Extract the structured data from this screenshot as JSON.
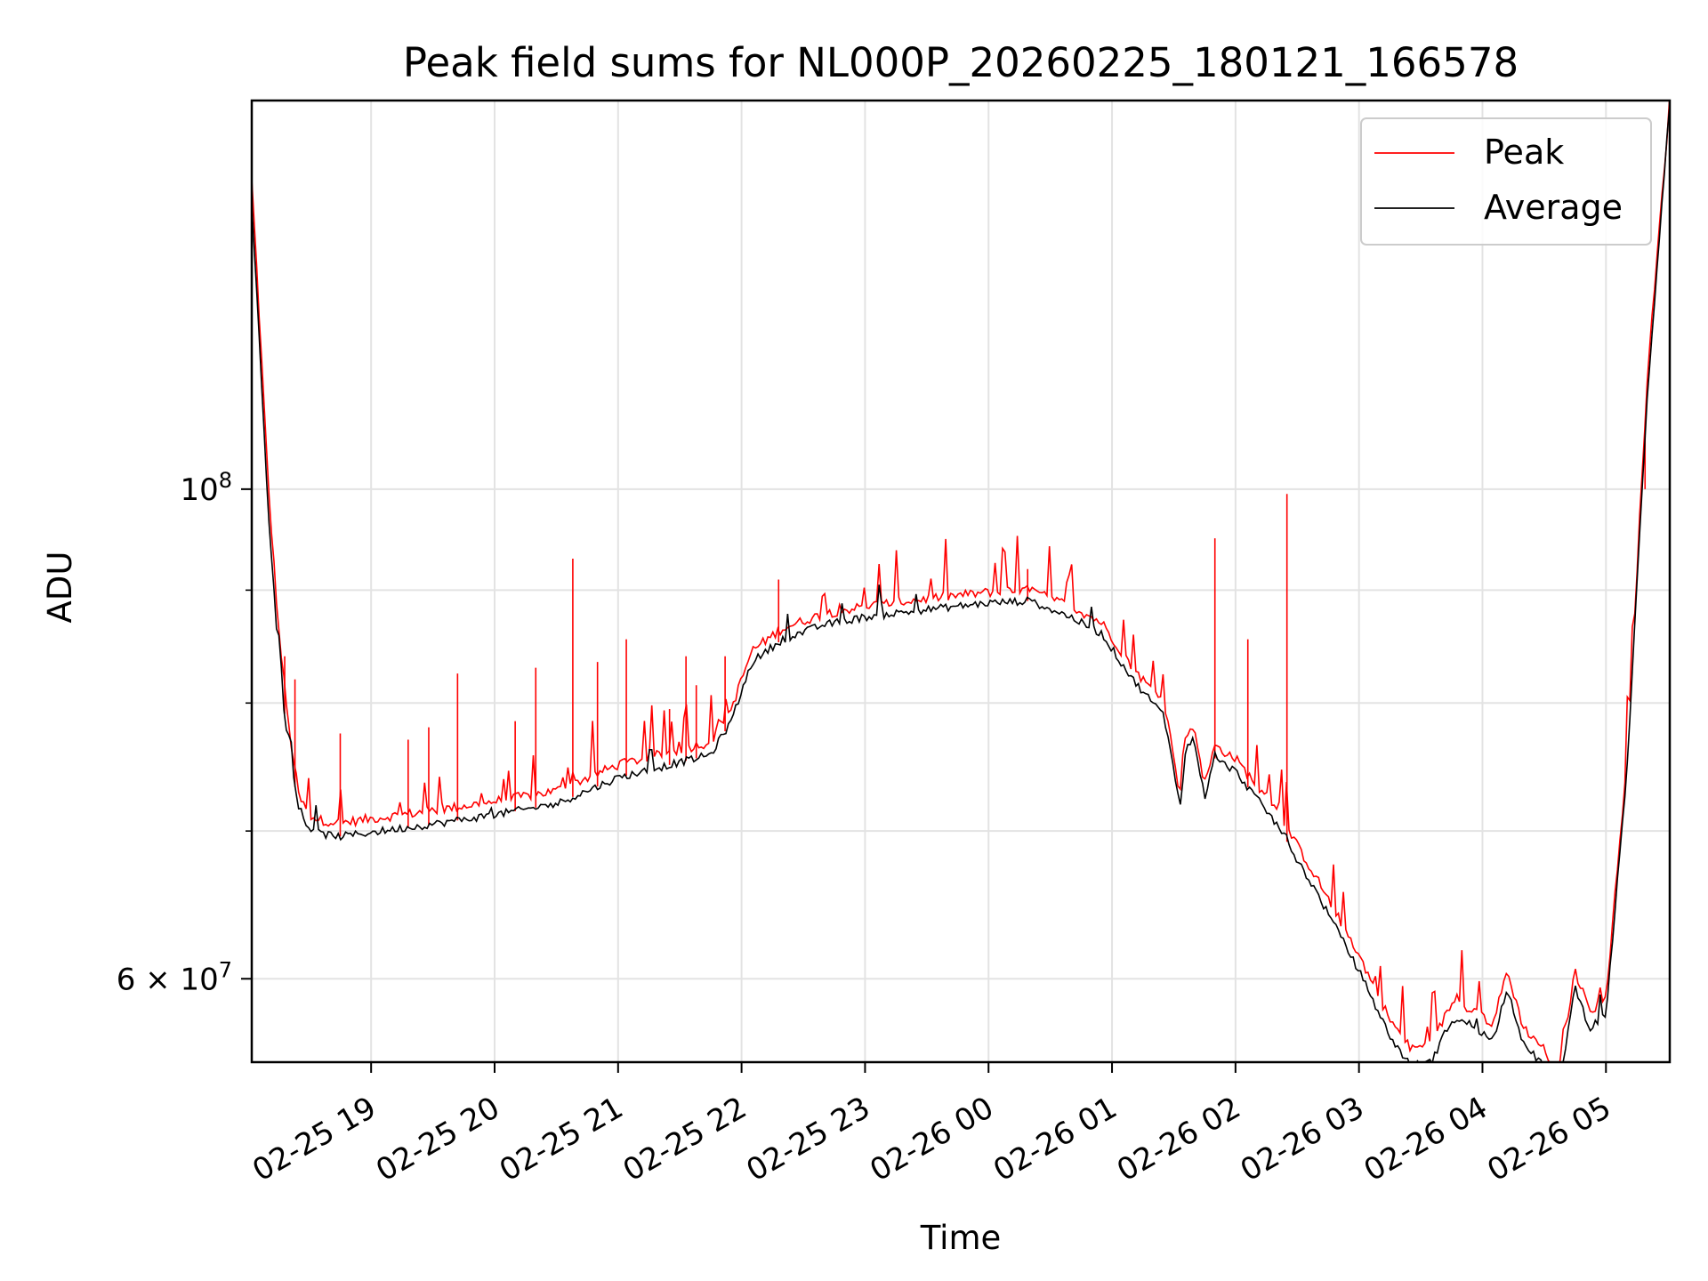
{
  "chart_data": {
    "type": "line",
    "title": "Peak field sums for NL000P_20260225_180121_166578",
    "xlabel": "Time",
    "ylabel": "ADU",
    "y_scale": "log",
    "ylim": [
      55000000,
      150000000
    ],
    "xlim": [
      "02-25 18:02",
      "02-26 05:31"
    ],
    "x_ticks": [
      {
        "value": "02-25 19:00",
        "label": "02-25 19"
      },
      {
        "value": "02-25 20:00",
        "label": "02-25 20"
      },
      {
        "value": "02-25 21:00",
        "label": "02-25 21"
      },
      {
        "value": "02-25 22:00",
        "label": "02-25 22"
      },
      {
        "value": "02-25 23:00",
        "label": "02-25 23"
      },
      {
        "value": "02-26 00:00",
        "label": "02-26 00"
      },
      {
        "value": "02-26 01:00",
        "label": "02-26 01"
      },
      {
        "value": "02-26 02:00",
        "label": "02-26 02"
      },
      {
        "value": "02-26 03:00",
        "label": "02-26 03"
      },
      {
        "value": "02-26 04:00",
        "label": "02-26 04"
      },
      {
        "value": "02-26 05:00",
        "label": "02-26 05"
      }
    ],
    "y_ticks": [
      {
        "value": 100000000,
        "label_base": "10",
        "label_exp": "8"
      },
      {
        "value": 60000000,
        "label_base": "6 × 10",
        "label_exp": "7"
      }
    ],
    "y_minor_ticks": [
      70000000,
      80000000,
      90000000
    ],
    "grid": true,
    "legend_position": "top-right",
    "series": [
      {
        "name": "Average",
        "color": "#000000",
        "x": [
          "02-25 18:02",
          "02-25 18:05",
          "02-25 18:10",
          "02-25 18:15",
          "02-25 18:20",
          "02-25 18:25",
          "02-25 18:30",
          "02-25 18:35",
          "02-25 18:45",
          "02-25 19:00",
          "02-25 19:30",
          "02-25 20:00",
          "02-25 20:30",
          "02-25 21:00",
          "02-25 21:30",
          "02-25 21:45",
          "02-25 21:55",
          "02-25 22:05",
          "02-25 22:20",
          "02-25 22:40",
          "02-25 23:00",
          "02-25 23:30",
          "02-26 00:00",
          "02-26 00:20",
          "02-26 00:40",
          "02-26 00:55",
          "02-26 01:10",
          "02-26 01:25",
          "02-26 01:30",
          "02-26 01:33",
          "02-26 01:36",
          "02-26 01:40",
          "02-26 01:45",
          "02-26 01:50",
          "02-26 02:00",
          "02-26 02:20",
          "02-26 02:40",
          "02-26 03:00",
          "02-26 03:15",
          "02-26 03:25",
          "02-26 03:35",
          "02-26 03:45",
          "02-26 03:55",
          "02-26 04:05",
          "02-26 04:12",
          "02-26 04:20",
          "02-26 04:30",
          "02-26 04:36",
          "02-26 04:45",
          "02-26 04:52",
          "02-26 05:00",
          "02-26 05:10",
          "02-26 05:20",
          "02-26 05:31"
        ],
        "values": [
          135000000,
          120000000,
          98000000,
          84000000,
          76000000,
          71500000,
          70200000,
          69800000,
          69600000,
          69900000,
          70500000,
          71200000,
          72000000,
          74000000,
          75200000,
          75800000,
          78500000,
          83500000,
          85500000,
          86800000,
          87500000,
          88200000,
          88800000,
          89000000,
          87500000,
          86000000,
          82000000,
          79000000,
          75000000,
          71500000,
          76500000,
          77000000,
          72500000,
          75500000,
          74500000,
          70500000,
          65500000,
          60500000,
          56500000,
          54800000,
          55000000,
          57500000,
          57200000,
          56200000,
          59500000,
          56000000,
          54800000,
          52800000,
          59500000,
          57000000,
          57800000,
          74000000,
          110000000,
          150000000
        ]
      },
      {
        "name": "Peak",
        "color": "#ff0000",
        "x": [
          "02-25 18:02",
          "02-25 18:05",
          "02-25 18:10",
          "02-25 18:15",
          "02-25 18:20",
          "02-25 18:25",
          "02-25 18:30",
          "02-25 18:35",
          "02-25 18:45",
          "02-25 19:00",
          "02-25 19:30",
          "02-25 20:00",
          "02-25 20:30",
          "02-25 21:00",
          "02-25 21:30",
          "02-25 21:45",
          "02-25 21:55",
          "02-25 22:05",
          "02-25 22:20",
          "02-25 22:40",
          "02-25 23:00",
          "02-25 23:30",
          "02-26 00:00",
          "02-26 00:20",
          "02-26 00:40",
          "02-26 00:55",
          "02-26 01:10",
          "02-26 01:25",
          "02-26 01:30",
          "02-26 01:33",
          "02-26 01:36",
          "02-26 01:40",
          "02-26 01:45",
          "02-26 01:50",
          "02-26 02:00",
          "02-26 02:20",
          "02-26 02:40",
          "02-26 03:00",
          "02-26 03:15",
          "02-26 03:25",
          "02-26 03:35",
          "02-26 03:45",
          "02-26 03:55",
          "02-26 04:05",
          "02-26 04:12",
          "02-26 04:20",
          "02-26 04:30",
          "02-26 04:36",
          "02-26 04:45",
          "02-26 04:52",
          "02-26 05:00",
          "02-26 05:10",
          "02-26 05:20",
          "02-26 05:31"
        ],
        "values": [
          138000000,
          123000000,
          100500000,
          86500000,
          78000000,
          72500000,
          71200000,
          70800000,
          70600000,
          70900000,
          71500000,
          72200000,
          73000000,
          75000000,
          76200000,
          76800000,
          79500000,
          84500000,
          86500000,
          87800000,
          88500000,
          89200000,
          89800000,
          90000000,
          88500000,
          87000000,
          83000000,
          80000000,
          76000000,
          72500000,
          77500000,
          78000000,
          73500000,
          76500000,
          75500000,
          71500000,
          66500000,
          61500000,
          57500000,
          55800000,
          56000000,
          58500000,
          58200000,
          57200000,
          60500000,
          57000000,
          55800000,
          53800000,
          60500000,
          58000000,
          58800000,
          75000000,
          112000000,
          150000000
        ],
        "spikes": [
          {
            "x": "02-25 18:18",
            "value": 84000000
          },
          {
            "x": "02-25 18:23",
            "value": 82000000
          },
          {
            "x": "02-25 18:45",
            "value": 77500000
          },
          {
            "x": "02-25 19:18",
            "value": 77000000
          },
          {
            "x": "02-25 19:28",
            "value": 78000000
          },
          {
            "x": "02-25 19:42",
            "value": 82500000
          },
          {
            "x": "02-25 20:10",
            "value": 78500000
          },
          {
            "x": "02-25 20:20",
            "value": 83000000
          },
          {
            "x": "02-25 20:38",
            "value": 93000000
          },
          {
            "x": "02-25 20:50",
            "value": 83500000
          },
          {
            "x": "02-25 21:04",
            "value": 85500000
          },
          {
            "x": "02-25 21:25",
            "value": 79500000
          },
          {
            "x": "02-25 21:33",
            "value": 84000000
          },
          {
            "x": "02-25 21:38",
            "value": 81500000
          },
          {
            "x": "02-25 21:52",
            "value": 84000000
          },
          {
            "x": "02-25 22:18",
            "value": 91000000
          },
          {
            "x": "02-26 00:19",
            "value": 92000000
          },
          {
            "x": "02-26 01:50",
            "value": 95000000
          },
          {
            "x": "02-26 02:06",
            "value": 85500000
          },
          {
            "x": "02-26 02:25",
            "value": 99500000
          },
          {
            "x": "02-26 05:19",
            "value": 100000000
          }
        ]
      }
    ]
  }
}
